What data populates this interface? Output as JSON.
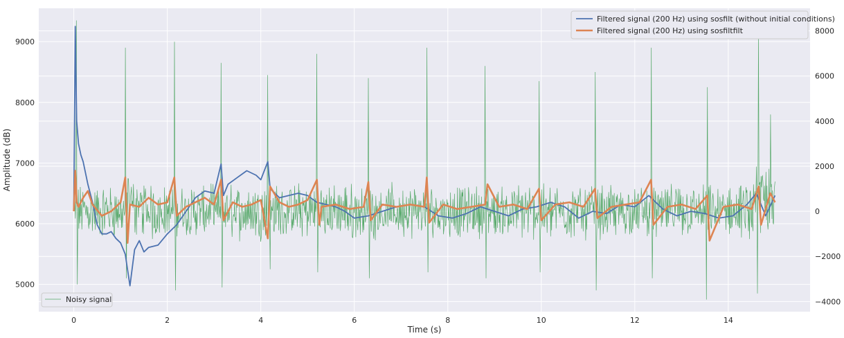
{
  "chart_data": {
    "type": "line",
    "title": "",
    "xlabel": "Time (s)",
    "ylabel_left": "Amplitude (dB)",
    "ylabel_right": "",
    "xlim": [
      -0.75,
      15.75
    ],
    "ylim_left": [
      4550,
      9550
    ],
    "ylim_right": [
      -4450,
      9000
    ],
    "x_ticks": [
      0,
      2,
      4,
      6,
      8,
      10,
      12,
      14
    ],
    "x_tick_labels": [
      "0",
      "2",
      "4",
      "6",
      "8",
      "10",
      "12",
      "14"
    ],
    "y_left_ticks": [
      5000,
      6000,
      7000,
      8000,
      9000
    ],
    "y_left_tick_labels": [
      "5000",
      "6000",
      "7000",
      "8000",
      "9000"
    ],
    "y_right_ticks": [
      -4000,
      -2000,
      0,
      2000,
      4000,
      6000,
      8000
    ],
    "y_right_tick_labels": [
      "−4000",
      "−2000",
      "0",
      "2000",
      "4000",
      "6000",
      "8000"
    ],
    "grid": true,
    "background": "#eaeaf2",
    "legend_upper": {
      "placement": "top-right",
      "entries": [
        "Filtered signal (200 Hz) using sosfilt (without initial conditions)",
        "Filtered signal (200 Hz) using sosfiltfilt"
      ]
    },
    "legend_lower": {
      "placement": "bottom-left",
      "entries": [
        "Noisy signal"
      ]
    },
    "series": [
      {
        "name": "Filtered signal (200 Hz) using sosfilt (without initial conditions)",
        "axis": "right",
        "color": "#4c72b0",
        "x": [
          0,
          0.03,
          0.06,
          0.1,
          0.15,
          0.2,
          0.3,
          0.4,
          0.5,
          0.6,
          0.7,
          0.8,
          0.9,
          1.0,
          1.1,
          1.2,
          1.3,
          1.4,
          1.5,
          1.6,
          1.8,
          2.0,
          2.2,
          2.4,
          2.6,
          2.8,
          3.0,
          3.15,
          3.2,
          3.3,
          3.5,
          3.7,
          3.9,
          4.0,
          4.15,
          4.2,
          4.4,
          4.6,
          4.8,
          5.0,
          5.2,
          5.4,
          5.6,
          5.8,
          6.0,
          6.3,
          6.6,
          6.9,
          7.2,
          7.5,
          7.8,
          8.1,
          8.4,
          8.7,
          9.0,
          9.3,
          9.6,
          9.9,
          10.2,
          10.5,
          10.8,
          11.1,
          11.4,
          11.7,
          12.0,
          12.3,
          12.6,
          12.9,
          13.2,
          13.5,
          13.8,
          14.1,
          14.4,
          14.6,
          14.8,
          15.0
        ],
        "y": [
          100,
          8200,
          4000,
          3000,
          2500,
          2200,
          1200,
          400,
          -600,
          -1000,
          -1000,
          -900,
          -1200,
          -1400,
          -1900,
          -3300,
          -1700,
          -1300,
          -1800,
          -1600,
          -1500,
          -1000,
          -600,
          0,
          600,
          900,
          800,
          2100,
          700,
          1200,
          1500,
          1800,
          1600,
          1400,
          2200,
          1000,
          600,
          700,
          800,
          700,
          400,
          300,
          200,
          0,
          -300,
          -200,
          0,
          200,
          300,
          200,
          -200,
          -300,
          -100,
          200,
          0,
          -200,
          100,
          200,
          400,
          200,
          -300,
          0,
          -100,
          300,
          200,
          700,
          100,
          -200,
          0,
          -100,
          -300,
          -200,
          300,
          800,
          -200,
          700
        ]
      },
      {
        "name": "Filtered signal (200 Hz) using sosfiltfilt",
        "axis": "right",
        "color": "#dd8452",
        "x": [
          0,
          0.03,
          0.06,
          0.1,
          0.2,
          0.3,
          0.4,
          0.6,
          0.8,
          1.0,
          1.1,
          1.15,
          1.2,
          1.4,
          1.6,
          1.8,
          2.0,
          2.15,
          2.2,
          2.4,
          2.6,
          2.8,
          3.0,
          3.15,
          3.2,
          3.4,
          3.6,
          3.8,
          4.0,
          4.15,
          4.2,
          4.4,
          4.6,
          4.8,
          5.0,
          5.2,
          5.25,
          5.3,
          5.6,
          5.9,
          6.2,
          6.3,
          6.35,
          6.6,
          6.9,
          7.2,
          7.5,
          7.55,
          7.6,
          7.9,
          8.2,
          8.5,
          8.8,
          8.85,
          9.1,
          9.4,
          9.7,
          9.95,
          10.0,
          10.3,
          10.6,
          10.9,
          11.15,
          11.2,
          11.5,
          11.8,
          12.1,
          12.35,
          12.4,
          12.7,
          13.0,
          13.3,
          13.55,
          13.6,
          13.9,
          14.2,
          14.5,
          14.65,
          14.7,
          14.9,
          15.0
        ],
        "y": [
          0,
          1800,
          400,
          200,
          600,
          900,
          300,
          -200,
          0,
          400,
          1500,
          -1400,
          300,
          200,
          600,
          300,
          400,
          1500,
          -200,
          200,
          400,
          600,
          300,
          1400,
          -400,
          400,
          200,
          300,
          500,
          -1200,
          1100,
          400,
          200,
          300,
          500,
          1400,
          -600,
          200,
          300,
          100,
          200,
          1300,
          -400,
          300,
          200,
          300,
          200,
          1500,
          -500,
          300,
          100,
          200,
          300,
          1200,
          200,
          300,
          100,
          1000,
          -400,
          300,
          400,
          200,
          1000,
          -300,
          200,
          300,
          400,
          1400,
          -600,
          200,
          300,
          100,
          700,
          -1300,
          200,
          300,
          100,
          1100,
          -600,
          800,
          400
        ]
      },
      {
        "name": "Noisy signal",
        "axis": "left",
        "color": "#55a868",
        "x_range": [
          0,
          15
        ],
        "baseline": 6200,
        "spikes": [
          {
            "x": 0.05,
            "y": 9350
          },
          {
            "x": 0.07,
            "y": 5000
          },
          {
            "x": 1.1,
            "y": 8900
          },
          {
            "x": 1.12,
            "y": 5100
          },
          {
            "x": 2.15,
            "y": 9000
          },
          {
            "x": 2.17,
            "y": 4900
          },
          {
            "x": 3.15,
            "y": 8650
          },
          {
            "x": 3.17,
            "y": 4950
          },
          {
            "x": 4.15,
            "y": 8450
          },
          {
            "x": 4.2,
            "y": 5250
          },
          {
            "x": 5.2,
            "y": 8800
          },
          {
            "x": 5.22,
            "y": 5200
          },
          {
            "x": 6.3,
            "y": 8400
          },
          {
            "x": 6.32,
            "y": 5100
          },
          {
            "x": 7.55,
            "y": 8900
          },
          {
            "x": 7.57,
            "y": 5200
          },
          {
            "x": 8.8,
            "y": 8600
          },
          {
            "x": 8.82,
            "y": 5100
          },
          {
            "x": 9.95,
            "y": 8350
          },
          {
            "x": 9.97,
            "y": 5200
          },
          {
            "x": 11.15,
            "y": 8500
          },
          {
            "x": 11.17,
            "y": 4900
          },
          {
            "x": 12.35,
            "y": 8900
          },
          {
            "x": 12.37,
            "y": 5100
          },
          {
            "x": 13.55,
            "y": 8250
          },
          {
            "x": 13.53,
            "y": 4750
          },
          {
            "x": 14.65,
            "y": 9150
          },
          {
            "x": 14.63,
            "y": 4850
          },
          {
            "x": 14.9,
            "y": 7800
          }
        ]
      }
    ]
  }
}
